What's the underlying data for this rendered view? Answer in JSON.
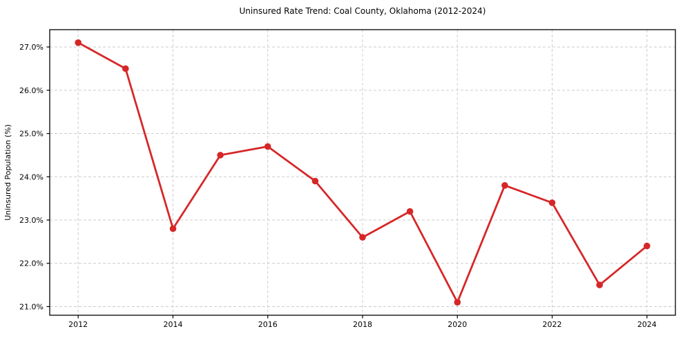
{
  "chart_data": {
    "type": "line",
    "title": "Uninsured Rate Trend: Coal County, Oklahoma (2012-2024)",
    "xlabel": "",
    "ylabel": "Uninsured Population (%)",
    "x": [
      2012,
      2013,
      2014,
      2015,
      2016,
      2017,
      2018,
      2019,
      2020,
      2021,
      2022,
      2023,
      2024
    ],
    "values": [
      27.1,
      26.5,
      22.8,
      24.5,
      24.7,
      23.9,
      22.6,
      23.2,
      21.1,
      23.8,
      23.4,
      21.5,
      22.4
    ],
    "xlim": [
      2011.4,
      2024.6
    ],
    "ylim": [
      20.8,
      27.4
    ],
    "xticks": [
      2012,
      2014,
      2016,
      2018,
      2020,
      2022,
      2024
    ],
    "xtick_labels": [
      "2012",
      "2014",
      "2016",
      "2018",
      "2020",
      "2022",
      "2024"
    ],
    "yticks": [
      21,
      22,
      23,
      24,
      25,
      26,
      27
    ],
    "ytick_labels": [
      "21.0%",
      "22.0%",
      "23.0%",
      "24.0%",
      "25.0%",
      "26.0%",
      "27.0%"
    ],
    "grid": true,
    "grid_style": "dashed",
    "legend_position": "none",
    "line_color": "#d62728",
    "marker": "circle",
    "grid_color": "#cccccc",
    "axis_color": "#000000",
    "text_color": "#000000",
    "background_color": "#ffffff"
  }
}
